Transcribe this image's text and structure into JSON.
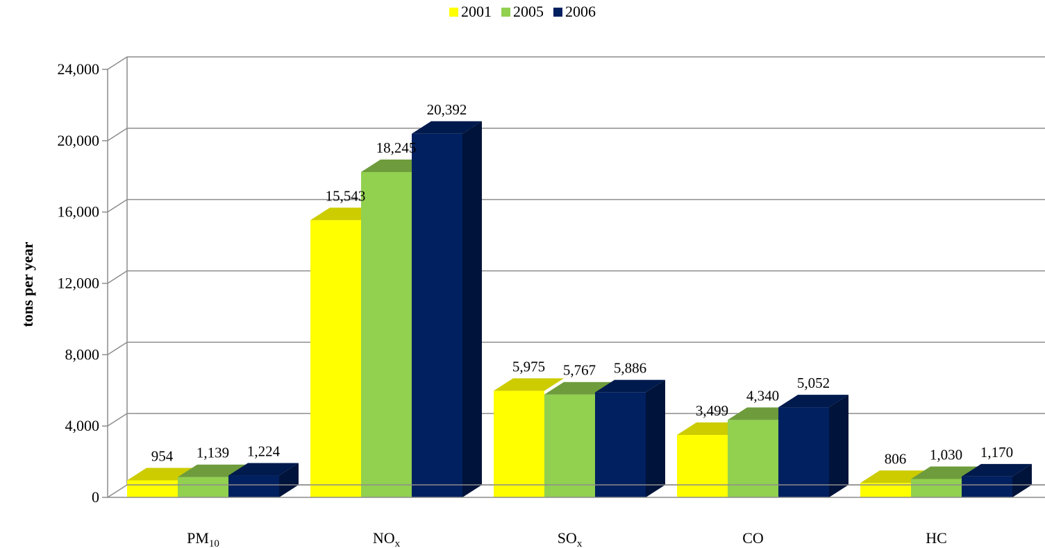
{
  "chart_data": {
    "type": "bar",
    "title": "",
    "xlabel": "",
    "ylabel": "tons per year",
    "categories": [
      {
        "base": "PM",
        "sub": "10"
      },
      {
        "base": "NO",
        "sub": "x"
      },
      {
        "base": "SO",
        "sub": "x"
      },
      {
        "base": "CO",
        "sub": ""
      },
      {
        "base": "HC",
        "sub": ""
      }
    ],
    "series": [
      {
        "name": "2001",
        "color": "#FFFF00",
        "top_color": "#CCCC00",
        "side_color": "#B3B300",
        "values": [
          954,
          15543,
          5975,
          3499,
          806
        ],
        "labels": [
          "954",
          "15,543",
          "5,975",
          "3,499",
          "806"
        ]
      },
      {
        "name": "2005",
        "color": "#92D050",
        "top_color": "#6E9C3C",
        "side_color": "#5E8733",
        "values": [
          1139,
          18245,
          5767,
          4340,
          1030
        ],
        "labels": [
          "1,139",
          "18,245",
          "5,767",
          "4,340",
          "1,030"
        ]
      },
      {
        "name": "2006",
        "color": "#002060",
        "top_color": "#001A4D",
        "side_color": "#00133A",
        "values": [
          1224,
          20392,
          5886,
          5052,
          1170
        ],
        "labels": [
          "1,224",
          "20,392",
          "5,886",
          "5,052",
          "1,170"
        ]
      }
    ],
    "ylim": [
      0,
      24000
    ],
    "yticks": [
      0,
      4000,
      8000,
      12000,
      16000,
      20000,
      24000
    ],
    "ytick_labels": [
      "0",
      "4,000",
      "8,000",
      "12,000",
      "16,000",
      "20,000",
      "24,000"
    ],
    "grid": true,
    "legend_position": "top-center"
  }
}
